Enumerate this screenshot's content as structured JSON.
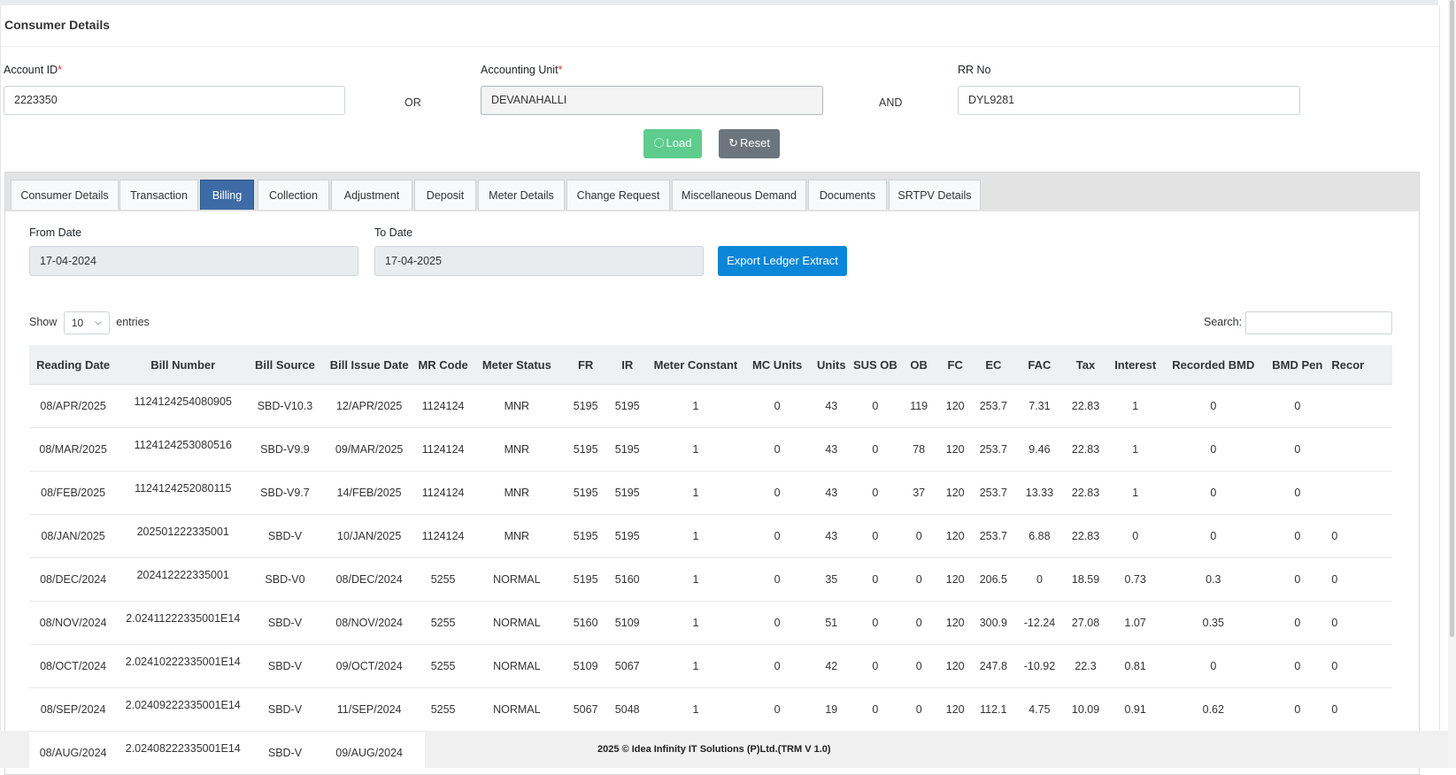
{
  "card_title": "Consumer Details",
  "form": {
    "account_id_label": "Account ID",
    "account_id_value": "2223350",
    "or_label": "OR",
    "accounting_unit_label": "Accounting Unit",
    "accounting_unit_value": "DEVANAHALLI",
    "and_label": "AND",
    "rr_no_label": "RR No",
    "rr_no_value": "DYL9281",
    "required_mark": "*"
  },
  "buttons": {
    "load": "Load",
    "reset": "Reset",
    "export": "Export Ledger Extract"
  },
  "tabs": [
    "Consumer Details",
    "Transaction",
    "Billing",
    "Collection",
    "Adjustment",
    "Deposit",
    "Meter Details",
    "Change Request",
    "Miscellaneous Demand",
    "Documents",
    "SRTPV Details"
  ],
  "active_tab": "Billing",
  "dates": {
    "from_label": "From Date",
    "from_value": "17-04-2024",
    "to_label": "To Date",
    "to_value": "17-04-2025"
  },
  "table_controls": {
    "show_label": "Show",
    "entries_value": "10",
    "entries_label": "entries",
    "search_label": "Search:"
  },
  "table": {
    "columns": [
      "Reading Date",
      "Bill Number",
      "Bill Source",
      "Bill Issue Date",
      "MR Code",
      "Meter Status",
      "FR",
      "IR",
      "Meter Constant",
      "MC Units",
      "Units",
      "SUS OB",
      "OB",
      "FC",
      "EC",
      "FAC",
      "Tax",
      "Interest",
      "Recorded BMD",
      "BMD Pen",
      "Recor"
    ],
    "rows": [
      [
        "08/APR/2025",
        "1124124254080905",
        "SBD-V10.3",
        "12/APR/2025",
        "1124124",
        "MNR",
        "5195",
        "5195",
        "1",
        "0",
        "43",
        "0",
        "119",
        "120",
        "253.7",
        "7.31",
        "22.83",
        "1",
        "0",
        "0",
        ""
      ],
      [
        "08/MAR/2025",
        "1124124253080516",
        "SBD-V9.9",
        "09/MAR/2025",
        "1124124",
        "MNR",
        "5195",
        "5195",
        "1",
        "0",
        "43",
        "0",
        "78",
        "120",
        "253.7",
        "9.46",
        "22.83",
        "1",
        "0",
        "0",
        ""
      ],
      [
        "08/FEB/2025",
        "1124124252080115",
        "SBD-V9.7",
        "14/FEB/2025",
        "1124124",
        "MNR",
        "5195",
        "5195",
        "1",
        "0",
        "43",
        "0",
        "37",
        "120",
        "253.7",
        "13.33",
        "22.83",
        "1",
        "0",
        "0",
        ""
      ],
      [
        "08/JAN/2025",
        "202501222335001",
        "SBD-V",
        "10/JAN/2025",
        "1124124",
        "MNR",
        "5195",
        "5195",
        "1",
        "0",
        "43",
        "0",
        "0",
        "120",
        "253.7",
        "6.88",
        "22.83",
        "0",
        "0",
        "0",
        "0"
      ],
      [
        "08/DEC/2024",
        "202412222335001",
        "SBD-V0",
        "08/DEC/2024",
        "5255",
        "NORMAL",
        "5195",
        "5160",
        "1",
        "0",
        "35",
        "0",
        "0",
        "120",
        "206.5",
        "0",
        "18.59",
        "0.73",
        "0.3",
        "0",
        "0"
      ],
      [
        "08/NOV/2024",
        "2.02411222335001E14",
        "SBD-V",
        "08/NOV/2024",
        "5255",
        "NORMAL",
        "5160",
        "5109",
        "1",
        "0",
        "51",
        "0",
        "0",
        "120",
        "300.9",
        "-12.24",
        "27.08",
        "1.07",
        "0.35",
        "0",
        "0"
      ],
      [
        "08/OCT/2024",
        "2.02410222335001E14",
        "SBD-V",
        "09/OCT/2024",
        "5255",
        "NORMAL",
        "5109",
        "5067",
        "1",
        "0",
        "42",
        "0",
        "0",
        "120",
        "247.8",
        "-10.92",
        "22.3",
        "0.81",
        "0",
        "0",
        "0"
      ],
      [
        "08/SEP/2024",
        "2.02409222335001E14",
        "SBD-V",
        "11/SEP/2024",
        "5255",
        "NORMAL",
        "5067",
        "5048",
        "1",
        "0",
        "19",
        "0",
        "0",
        "120",
        "112.1",
        "4.75",
        "10.09",
        "0.91",
        "0.62",
        "0",
        "0"
      ],
      [
        "08/AUG/2024",
        "2.02408222335001E14",
        "SBD-V",
        "09/AUG/2024",
        "",
        "",
        "",
        "",
        "",
        "",
        "",
        "",
        "",
        "",
        "",
        "",
        "",
        "",
        "",
        "",
        ""
      ]
    ]
  },
  "footer": "2025 © Idea Infinity IT Solutions (P)Ltd.(TRM V 1.0)",
  "icons": {
    "load": "spinner-icon",
    "reset": "refresh-icon",
    "select": "chevron-down-icon"
  },
  "colors": {
    "active_tab": "#3e6ba5",
    "load_button": "#5dcc8c",
    "reset_button": "#6c757d",
    "export_button": "#0b86d8"
  }
}
